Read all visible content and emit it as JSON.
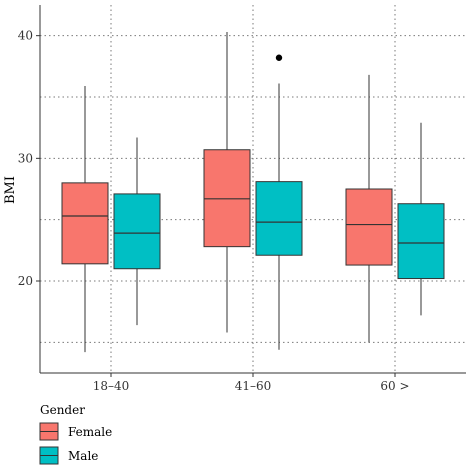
{
  "chart_data": {
    "type": "boxplot",
    "title": "",
    "xlabel": "",
    "ylabel": "BMI",
    "ylim": [
      12.5,
      42.5
    ],
    "y_ticks": [
      20,
      30,
      40
    ],
    "grid": "dotted",
    "categories": [
      "18–40",
      "41–60",
      "60 >"
    ],
    "legend": {
      "title": "Gender",
      "placement": "bottom-left"
    },
    "series": [
      {
        "name": "Female",
        "color": "#F8766D",
        "boxes": [
          {
            "min": 14.2,
            "q1": 21.4,
            "median": 25.3,
            "q3": 28.0,
            "max": 35.9,
            "outliers": []
          },
          {
            "min": 15.8,
            "q1": 22.8,
            "median": 26.7,
            "q3": 30.7,
            "max": 40.3,
            "outliers": []
          },
          {
            "min": 15.0,
            "q1": 21.3,
            "median": 24.6,
            "q3": 27.5,
            "max": 36.8,
            "outliers": []
          }
        ]
      },
      {
        "name": "Male",
        "color": "#00BFC4",
        "boxes": [
          {
            "min": 16.4,
            "q1": 21.0,
            "median": 23.9,
            "q3": 27.1,
            "max": 31.7,
            "outliers": []
          },
          {
            "min": 14.4,
            "q1": 22.1,
            "median": 24.8,
            "q3": 28.1,
            "max": 36.1,
            "outliers": [
              38.2
            ]
          },
          {
            "min": 17.2,
            "q1": 20.2,
            "median": 23.1,
            "q3": 26.3,
            "max": 32.9,
            "outliers": []
          }
        ]
      }
    ]
  }
}
